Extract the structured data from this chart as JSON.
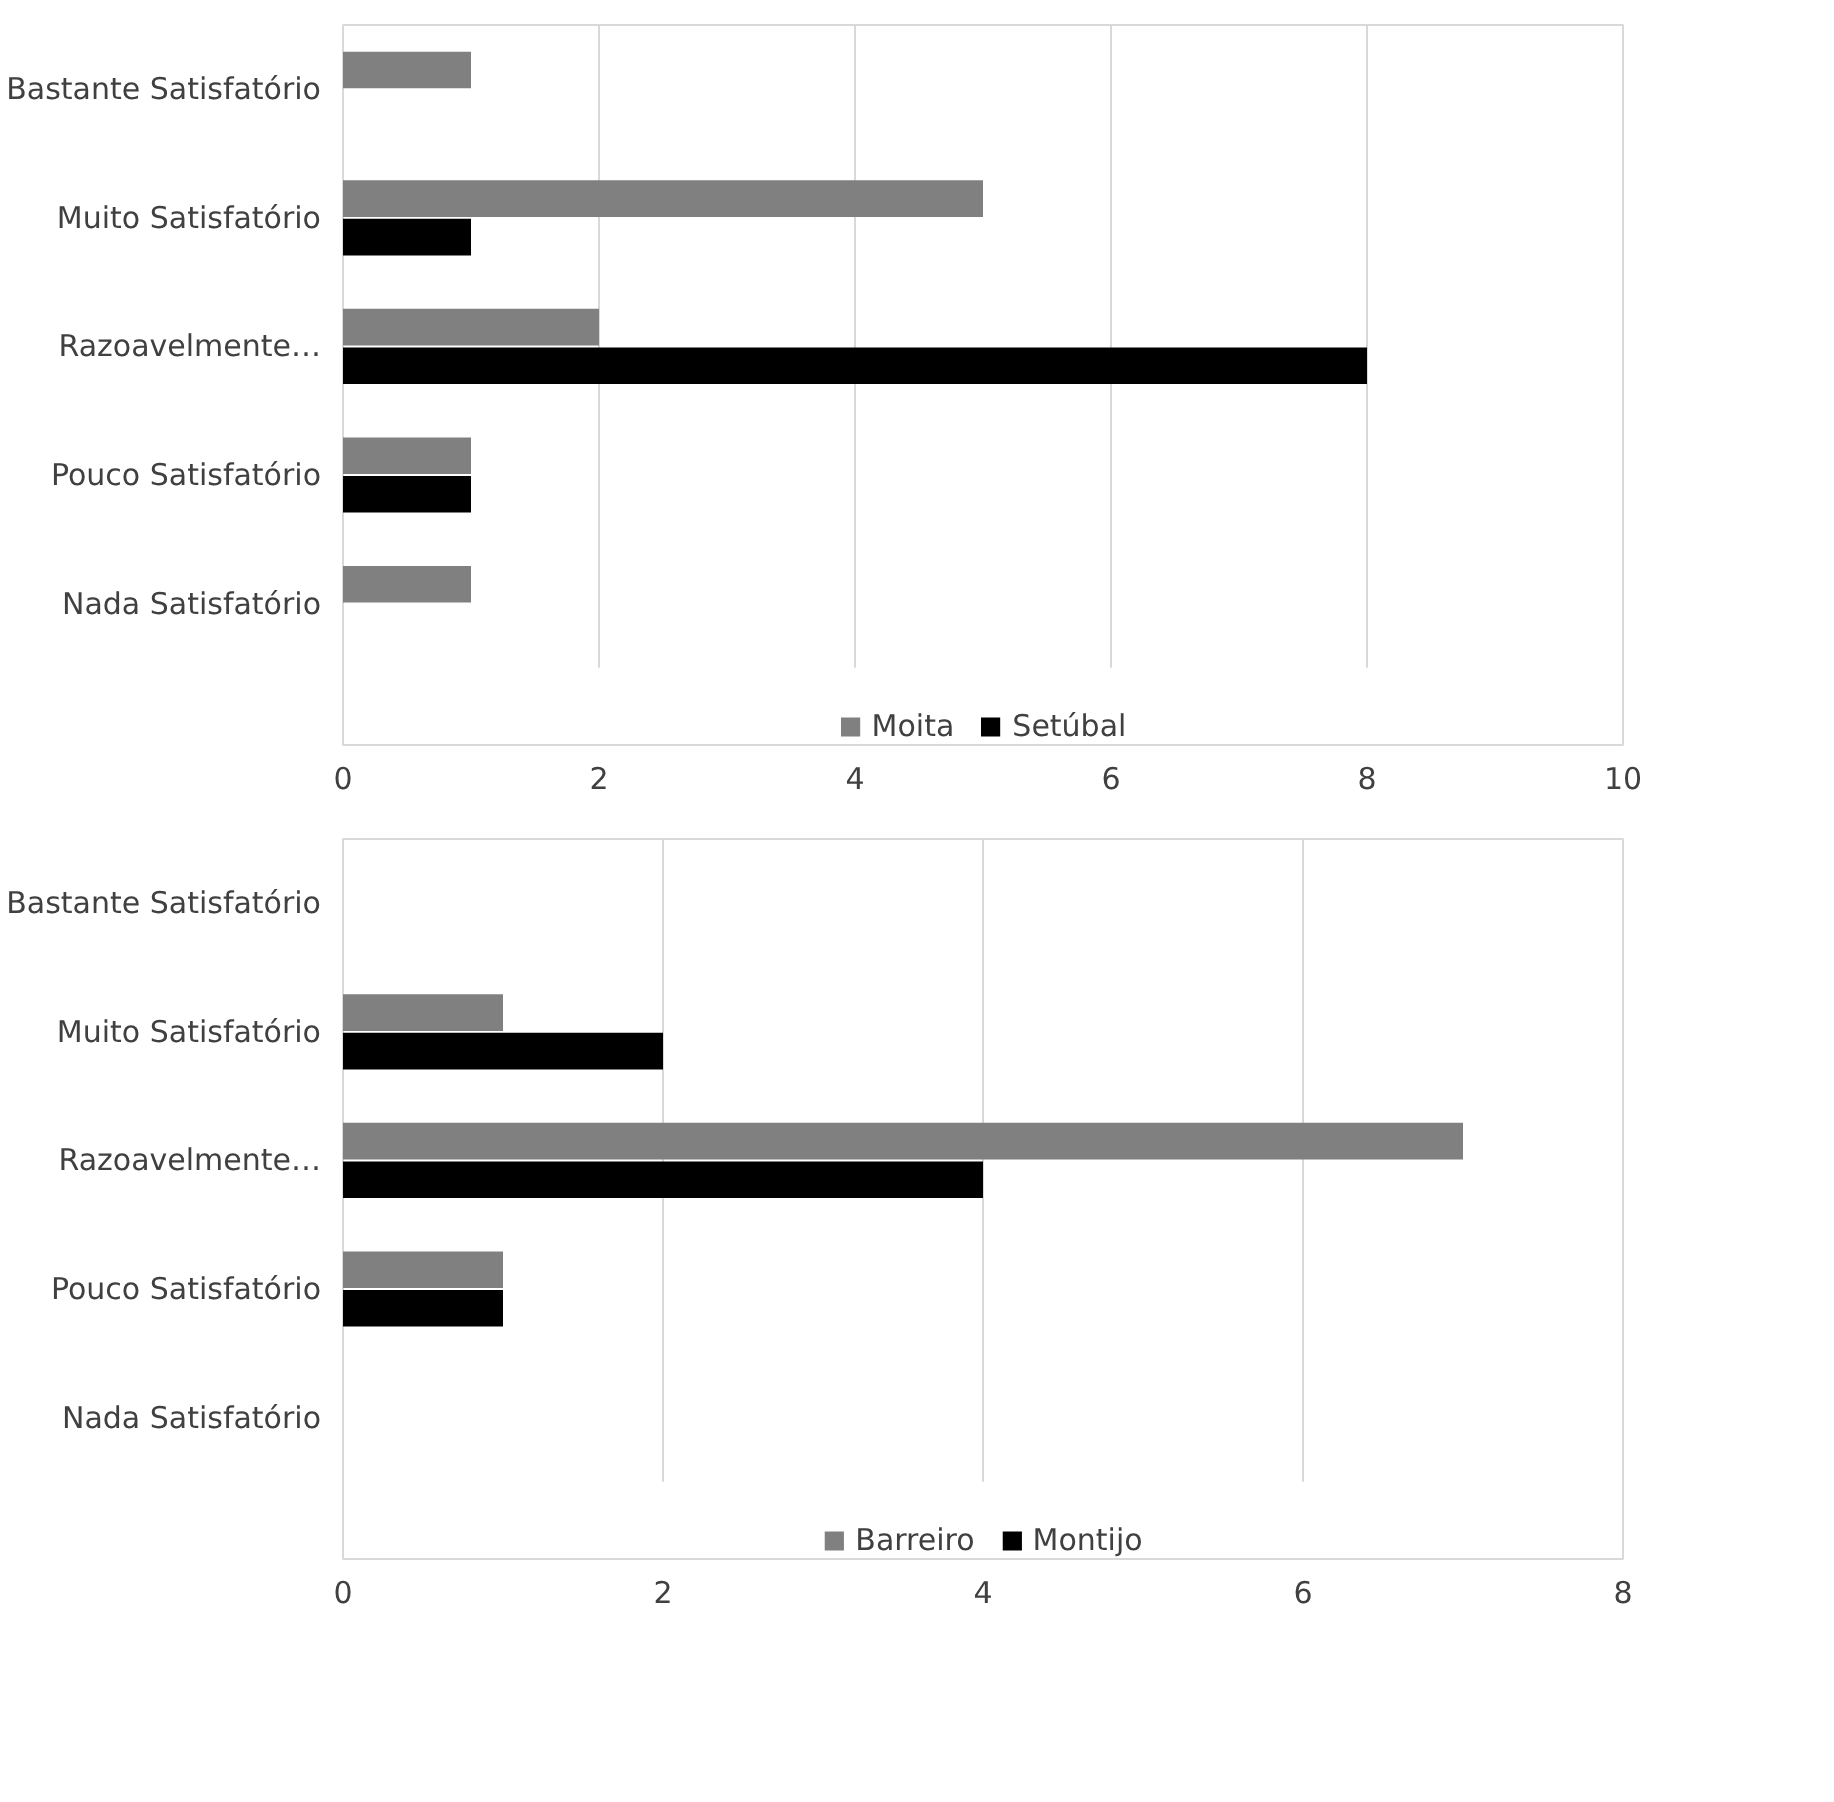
{
  "chart_data": [
    {
      "type": "bar",
      "orientation": "horizontal",
      "categories": [
        "Bastante Satisfatório",
        "Muito Satisfatório",
        "Razoavelmente…",
        "Pouco Satisfatório",
        "Nada Satisfatório"
      ],
      "series": [
        {
          "name": "Moita",
          "color": "#808080",
          "values": [
            1,
            5,
            2,
            1,
            1
          ]
        },
        {
          "name": "Setúbal",
          "color": "#000000",
          "values": [
            null,
            1,
            8,
            1,
            null
          ]
        }
      ],
      "xlim": [
        0,
        10
      ],
      "xticks": [
        0,
        2,
        4,
        6,
        8,
        10
      ],
      "grid": "x",
      "legend": "bottom"
    },
    {
      "type": "bar",
      "orientation": "horizontal",
      "categories": [
        "Bastante Satisfatório",
        "Muito Satisfatório",
        "Razoavelmente…",
        "Pouco Satisfatório",
        "Nada Satisfatório"
      ],
      "series": [
        {
          "name": "Barreiro",
          "color": "#808080",
          "values": [
            null,
            1,
            7,
            1,
            null
          ]
        },
        {
          "name": "Montijo",
          "color": "#000000",
          "values": [
            null,
            2,
            4,
            1,
            null
          ]
        }
      ],
      "xlim": [
        0,
        8
      ],
      "xticks": [
        0,
        2,
        4,
        6,
        8
      ],
      "grid": "x",
      "legend": "bottom"
    }
  ]
}
